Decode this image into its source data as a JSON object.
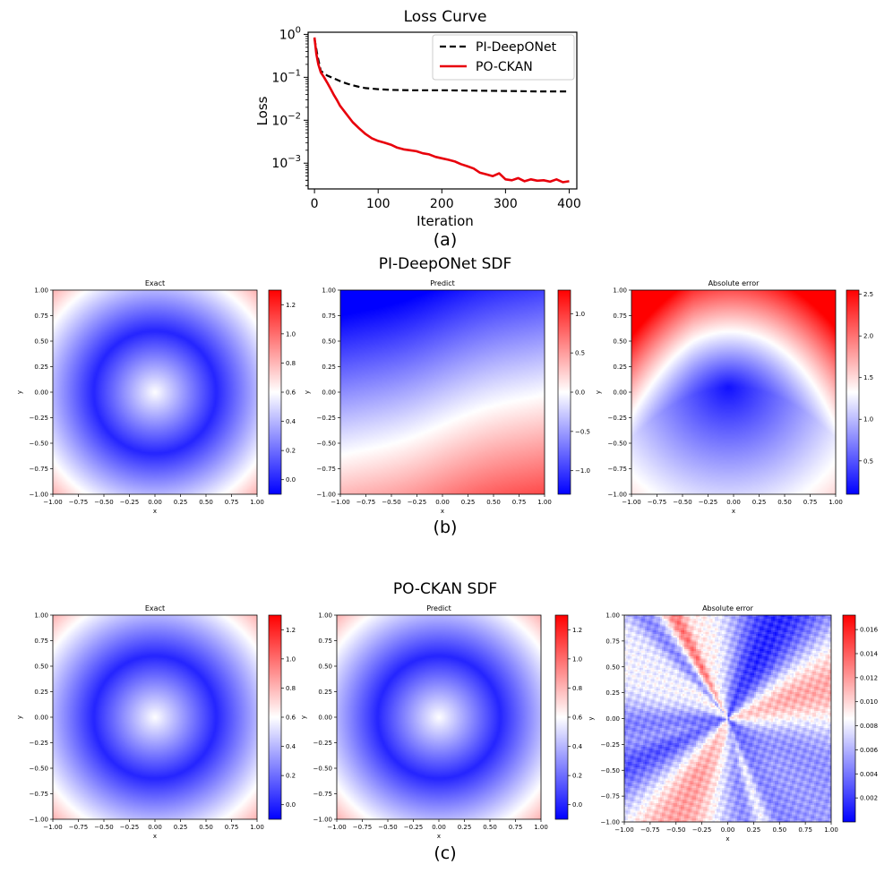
{
  "labels": {
    "a": "(a)",
    "b": "(b)",
    "c": "(c)",
    "title_b": "PI-DeepONet SDF",
    "title_c": "PO-CKAN SDF"
  },
  "colors": {
    "cmap_low": "#0000ff",
    "cmap_mid": "#ffffff",
    "cmap_high": "#ff0000",
    "deeponet_line": "#000000",
    "pockan_line": "#e8000b"
  },
  "chart_data": [
    {
      "type": "line",
      "title": "Loss Curve",
      "xlabel": "Iteration",
      "ylabel": "Loss",
      "xlim": [
        -10,
        412
      ],
      "ylim_log10": [
        -3.6,
        0.05
      ],
      "xticks": [
        0,
        100,
        200,
        300,
        400
      ],
      "xtick_labels": [
        "0",
        "100",
        "200",
        "300",
        "400"
      ],
      "yticks_log10": [
        0,
        -1,
        -2,
        -3
      ],
      "ytick_labels": [
        {
          "base": "10",
          "exp": "0"
        },
        {
          "base": "10",
          "exp": "−1"
        },
        {
          "base": "10",
          "exp": "−2"
        },
        {
          "base": "10",
          "exp": "−3"
        }
      ],
      "series": [
        {
          "name": "PI-DeepONet",
          "style": "dashed",
          "x": [
            0,
            5,
            10,
            20,
            30,
            40,
            50,
            60,
            70,
            80,
            100,
            120,
            150,
            200,
            250,
            300,
            350,
            400
          ],
          "y": [
            0.8,
            0.3,
            0.14,
            0.11,
            0.095,
            0.082,
            0.072,
            0.065,
            0.06,
            0.056,
            0.053,
            0.051,
            0.05,
            0.05,
            0.049,
            0.048,
            0.047,
            0.047
          ]
        },
        {
          "name": "PO-CKAN",
          "style": "solid",
          "x": [
            0,
            3,
            6,
            10,
            15,
            20,
            25,
            30,
            35,
            40,
            50,
            60,
            70,
            80,
            90,
            100,
            110,
            120,
            130,
            140,
            150,
            160,
            170,
            180,
            190,
            200,
            210,
            220,
            230,
            240,
            250,
            260,
            270,
            280,
            290,
            300,
            310,
            320,
            330,
            340,
            350,
            360,
            370,
            380,
            390,
            400
          ],
          "y": [
            0.85,
            0.35,
            0.2,
            0.13,
            0.1,
            0.075,
            0.055,
            0.04,
            0.03,
            0.022,
            0.014,
            0.009,
            0.0065,
            0.0048,
            0.0038,
            0.0033,
            0.003,
            0.0027,
            0.0023,
            0.0021,
            0.002,
            0.0019,
            0.0017,
            0.0016,
            0.0014,
            0.0013,
            0.0012,
            0.0011,
            0.00095,
            0.00085,
            0.00075,
            0.0006,
            0.00055,
            0.0005,
            0.00058,
            0.00042,
            0.0004,
            0.00045,
            0.00038,
            0.00042,
            0.00039,
            0.0004,
            0.00037,
            0.00042,
            0.00036,
            0.00038
          ]
        }
      ]
    },
    {
      "type": "heatmap",
      "group": "PI-DeepONet SDF",
      "title": "Exact",
      "field": "exact",
      "xlabel": "x",
      "ylabel": "y",
      "xlim": [
        -1,
        1
      ],
      "ylim": [
        -1,
        1
      ],
      "tick_labels": [
        "−1.00",
        "−0.75",
        "−0.50",
        "−0.25",
        "0.00",
        "0.25",
        "0.50",
        "0.75",
        "1.00"
      ],
      "vmin": -0.1,
      "vmax": 1.3,
      "colorbar_ticks": [
        0.0,
        0.2,
        0.4,
        0.6,
        0.8,
        1.0,
        1.2
      ],
      "colorbar_labels": [
        "0.0",
        "0.2",
        "0.4",
        "0.6",
        "0.8",
        "1.0",
        "1.2"
      ]
    },
    {
      "type": "heatmap",
      "group": "PI-DeepONet SDF",
      "title": "Predict",
      "field": "deeponet_predict",
      "xlabel": "x",
      "ylabel": "y",
      "xlim": [
        -1,
        1
      ],
      "ylim": [
        -1,
        1
      ],
      "tick_labels": [
        "−1.00",
        "−0.75",
        "−0.50",
        "−0.25",
        "0.00",
        "0.25",
        "0.50",
        "0.75",
        "1.00"
      ],
      "vmin": -1.3,
      "vmax": 1.3,
      "colorbar_ticks": [
        -1.0,
        -0.5,
        0.0,
        0.5,
        1.0
      ],
      "colorbar_labels": [
        "−1.0",
        "−0.5",
        "0.0",
        "0.5",
        "1.0"
      ]
    },
    {
      "type": "heatmap",
      "group": "PI-DeepONet SDF",
      "title": "Absolute error",
      "field": "deeponet_error",
      "xlabel": "x",
      "ylabel": "y",
      "xlim": [
        -1,
        1
      ],
      "ylim": [
        -1,
        1
      ],
      "tick_labels": [
        "−1.00",
        "−0.75",
        "−0.50",
        "−0.25",
        "0.00",
        "0.25",
        "0.50",
        "0.75",
        "1.00"
      ],
      "vmin": 0.1,
      "vmax": 2.55,
      "colorbar_ticks": [
        0.5,
        1.0,
        1.5,
        2.0,
        2.5
      ],
      "colorbar_labels": [
        "0.5",
        "1.0",
        "1.5",
        "2.0",
        "2.5"
      ]
    },
    {
      "type": "heatmap",
      "group": "PO-CKAN SDF",
      "title": "Exact",
      "field": "exact",
      "xlabel": "x",
      "ylabel": "y",
      "xlim": [
        -1,
        1
      ],
      "ylim": [
        -1,
        1
      ],
      "tick_labels": [
        "−1.00",
        "−0.75",
        "−0.50",
        "−0.25",
        "0.00",
        "0.25",
        "0.50",
        "0.75",
        "1.00"
      ],
      "vmin": -0.1,
      "vmax": 1.3,
      "colorbar_ticks": [
        0.0,
        0.2,
        0.4,
        0.6,
        0.8,
        1.0,
        1.2
      ],
      "colorbar_labels": [
        "0.0",
        "0.2",
        "0.4",
        "0.6",
        "0.8",
        "1.0",
        "1.2"
      ]
    },
    {
      "type": "heatmap",
      "group": "PO-CKAN SDF",
      "title": "Predict",
      "field": "exact",
      "xlabel": "x",
      "ylabel": "y",
      "xlim": [
        -1,
        1
      ],
      "ylim": [
        -1,
        1
      ],
      "tick_labels": [
        "−1.00",
        "−0.75",
        "−0.50",
        "−0.25",
        "0.00",
        "0.25",
        "0.50",
        "0.75",
        "1.00"
      ],
      "vmin": -0.1,
      "vmax": 1.3,
      "colorbar_ticks": [
        0.0,
        0.2,
        0.4,
        0.6,
        0.8,
        1.0,
        1.2
      ],
      "colorbar_labels": [
        "0.0",
        "0.2",
        "0.4",
        "0.6",
        "0.8",
        "1.0",
        "1.2"
      ]
    },
    {
      "type": "heatmap",
      "group": "PO-CKAN SDF",
      "title": "Absolute error",
      "field": "pockan_error",
      "xlabel": "x",
      "ylabel": "y",
      "xlim": [
        -1,
        1
      ],
      "ylim": [
        -1,
        1
      ],
      "tick_labels": [
        "−1.00",
        "−0.75",
        "−0.50",
        "−0.25",
        "0.00",
        "0.25",
        "0.50",
        "0.75",
        "1.00"
      ],
      "vmin": 0.0,
      "vmax": 0.0172,
      "colorbar_ticks": [
        0.002,
        0.004,
        0.006,
        0.008,
        0.01,
        0.012,
        0.014,
        0.016
      ],
      "colorbar_labels": [
        "0.002",
        "0.004",
        "0.006",
        "0.008",
        "0.010",
        "0.012",
        "0.014",
        "0.016"
      ]
    }
  ]
}
